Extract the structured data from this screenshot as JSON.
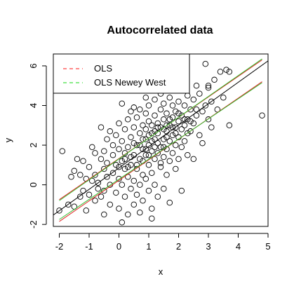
{
  "chart_data": {
    "type": "scatter",
    "title": "Autocorrelated data",
    "xlabel": "x",
    "ylabel": "y",
    "xlim": [
      -2.2,
      5.0
    ],
    "ylim": [
      -2.1,
      6.6
    ],
    "xticks": [
      "-2",
      "-1",
      "0",
      "1",
      "2",
      "3",
      "4",
      "5"
    ],
    "yticks": [
      "-2",
      "0",
      "2",
      "4",
      "6"
    ],
    "xtick_values": [
      -2,
      -1,
      0,
      1,
      2,
      3,
      4,
      5
    ],
    "ytick_values": [
      -2,
      0,
      2,
      4,
      6
    ],
    "grid": false,
    "legend_position": "top-left",
    "legend": [
      {
        "label": "OLS",
        "color": "#FF4040",
        "style": "dashed"
      },
      {
        "label": "OLS Newey West",
        "color": "#40E040",
        "style": "dashed"
      }
    ],
    "fit_line": {
      "intercept": 0.85,
      "slope": 1.08,
      "color": "#000000"
    },
    "bands": [
      {
        "name": "OLS",
        "color": "#E02020",
        "lower": [
          [
            -2,
            -1.85
          ],
          [
            4.8,
            5.2
          ]
        ],
        "upper": [
          [
            -2,
            -0.75
          ],
          [
            4.8,
            6.3
          ]
        ]
      },
      {
        "name": "OLS Newey West",
        "color": "#30C030",
        "lower": [
          [
            -2,
            -1.75
          ],
          [
            4.8,
            5.15
          ]
        ],
        "upper": [
          [
            -2,
            -0.8
          ],
          [
            4.8,
            6.35
          ]
        ]
      }
    ],
    "points": [
      [
        -2.0,
        -1.3
      ],
      [
        -1.9,
        1.7
      ],
      [
        -1.7,
        -1.0
      ],
      [
        -1.6,
        0.4
      ],
      [
        -1.5,
        -1.1
      ],
      [
        -1.5,
        0.7
      ],
      [
        -1.4,
        1.3
      ],
      [
        -1.3,
        -0.6
      ],
      [
        -1.3,
        0.5
      ],
      [
        -1.2,
        -0.3
      ],
      [
        -1.2,
        1.2
      ],
      [
        -1.1,
        0.3
      ],
      [
        -1.1,
        -1.3
      ],
      [
        -1.0,
        0.9
      ],
      [
        -1.0,
        -0.5
      ],
      [
        -0.9,
        0.2
      ],
      [
        -0.9,
        1.9
      ],
      [
        -0.8,
        -0.8
      ],
      [
        -0.8,
        1.6
      ],
      [
        -0.8,
        0.5
      ],
      [
        -0.7,
        0.1
      ],
      [
        -0.7,
        -0.2
      ],
      [
        -0.6,
        1.3
      ],
      [
        -0.6,
        2.9
      ],
      [
        -0.6,
        -0.6
      ],
      [
        -0.5,
        0.8
      ],
      [
        -0.5,
        1.7
      ],
      [
        -0.5,
        -1.5
      ],
      [
        -0.4,
        0.4
      ],
      [
        -0.4,
        2.3
      ],
      [
        -0.4,
        1.1
      ],
      [
        -0.3,
        0.0
      ],
      [
        -0.3,
        2.7
      ],
      [
        -0.3,
        -1.0
      ],
      [
        -0.2,
        1.5
      ],
      [
        -0.2,
        0.6
      ],
      [
        -0.2,
        2.0
      ],
      [
        -0.1,
        1.0
      ],
      [
        -0.1,
        -0.4
      ],
      [
        -0.1,
        2.5
      ],
      [
        0.0,
        0.3
      ],
      [
        0.0,
        1.8
      ],
      [
        0.0,
        3.1
      ],
      [
        0.0,
        -1.2
      ],
      [
        0.1,
        1.2
      ],
      [
        0.1,
        0.0
      ],
      [
        0.1,
        2.2
      ],
      [
        0.1,
        4.1
      ],
      [
        0.2,
        0.8
      ],
      [
        0.2,
        1.6
      ],
      [
        0.2,
        -0.6
      ],
      [
        0.2,
        2.8
      ],
      [
        0.3,
        1.9
      ],
      [
        0.3,
        0.4
      ],
      [
        0.3,
        3.3
      ],
      [
        0.3,
        -1.5
      ],
      [
        0.4,
        1.0
      ],
      [
        0.4,
        2.4
      ],
      [
        0.4,
        -0.2
      ],
      [
        0.4,
        3.7
      ],
      [
        0.5,
        1.5
      ],
      [
        0.5,
        0.2
      ],
      [
        0.5,
        2.9
      ],
      [
        0.5,
        -1.0
      ],
      [
        0.5,
        3.9
      ],
      [
        0.6,
        2.0
      ],
      [
        0.6,
        0.8
      ],
      [
        0.6,
        3.4
      ],
      [
        0.6,
        -0.5
      ],
      [
        0.7,
        1.3
      ],
      [
        0.7,
        2.6
      ],
      [
        0.7,
        0.0
      ],
      [
        0.7,
        3.8
      ],
      [
        0.7,
        -1.4
      ],
      [
        0.8,
        1.8
      ],
      [
        0.8,
        0.5
      ],
      [
        0.8,
        3.0
      ],
      [
        0.8,
        2.3
      ],
      [
        0.8,
        -0.8
      ],
      [
        0.9,
        1.5
      ],
      [
        0.9,
        2.8
      ],
      [
        0.9,
        0.3
      ],
      [
        0.9,
        3.6
      ],
      [
        0.9,
        4.4
      ],
      [
        1.0,
        2.0
      ],
      [
        1.0,
        1.0
      ],
      [
        1.0,
        3.2
      ],
      [
        1.0,
        -0.3
      ],
      [
        1.0,
        2.5
      ],
      [
        1.0,
        4.0
      ],
      [
        1.1,
        1.7
      ],
      [
        1.1,
        3.0
      ],
      [
        1.1,
        0.6
      ],
      [
        1.1,
        2.2
      ],
      [
        1.1,
        -1.2
      ],
      [
        1.2,
        2.7
      ],
      [
        1.2,
        1.3
      ],
      [
        1.2,
        3.5
      ],
      [
        1.2,
        0.0
      ],
      [
        1.2,
        4.3
      ],
      [
        1.3,
        2.1
      ],
      [
        1.3,
        1.6
      ],
      [
        1.3,
        3.1
      ],
      [
        1.3,
        -0.6
      ],
      [
        1.3,
        2.6
      ],
      [
        1.4,
        1.9
      ],
      [
        1.4,
        3.8
      ],
      [
        1.4,
        0.9
      ],
      [
        1.4,
        2.9
      ],
      [
        1.4,
        4.6
      ],
      [
        1.5,
        2.3
      ],
      [
        1.5,
        1.4
      ],
      [
        1.5,
        3.3
      ],
      [
        1.5,
        -0.2
      ],
      [
        1.5,
        4.1
      ],
      [
        1.6,
        2.7
      ],
      [
        1.6,
        1.8
      ],
      [
        1.6,
        3.6
      ],
      [
        1.6,
        0.5
      ],
      [
        1.7,
        2.2
      ],
      [
        1.7,
        3.0
      ],
      [
        1.7,
        1.2
      ],
      [
        1.7,
        4.4
      ],
      [
        1.7,
        -0.9
      ],
      [
        1.8,
        2.5
      ],
      [
        1.8,
        3.4
      ],
      [
        1.8,
        1.6
      ],
      [
        1.8,
        4.0
      ],
      [
        1.9,
        2.9
      ],
      [
        1.9,
        2.0
      ],
      [
        1.9,
        3.7
      ],
      [
        1.9,
        0.8
      ],
      [
        2.0,
        3.2
      ],
      [
        2.0,
        2.4
      ],
      [
        2.0,
        4.2
      ],
      [
        2.0,
        1.3
      ],
      [
        2.0,
        4.8
      ],
      [
        2.1,
        2.8
      ],
      [
        2.1,
        3.5
      ],
      [
        2.1,
        1.9
      ],
      [
        2.1,
        -0.3
      ],
      [
        2.2,
        3.0
      ],
      [
        2.2,
        4.0
      ],
      [
        2.2,
        2.2
      ],
      [
        2.3,
        3.3
      ],
      [
        2.3,
        4.5
      ],
      [
        2.3,
        1.5
      ],
      [
        2.4,
        2.7
      ],
      [
        2.4,
        3.8
      ],
      [
        2.5,
        3.1
      ],
      [
        2.5,
        4.3
      ],
      [
        2.5,
        1.3
      ],
      [
        2.6,
        3.5
      ],
      [
        2.6,
        5.0
      ],
      [
        2.7,
        2.5
      ],
      [
        2.7,
        4.6
      ],
      [
        2.8,
        3.7
      ],
      [
        2.8,
        2.1
      ],
      [
        2.9,
        4.0
      ],
      [
        2.9,
        6.1
      ],
      [
        3.0,
        3.3
      ],
      [
        3.0,
        4.9
      ],
      [
        3.1,
        2.9
      ],
      [
        3.1,
        4.2
      ],
      [
        3.2,
        5.3
      ],
      [
        3.3,
        3.8
      ],
      [
        3.4,
        5.7
      ],
      [
        3.5,
        4.4
      ],
      [
        3.6,
        5.8
      ],
      [
        3.7,
        3.0
      ],
      [
        3.7,
        5.7
      ],
      [
        3.0,
        5.0
      ],
      [
        4.8,
        3.5
      ],
      [
        0.1,
        -1.9
      ],
      [
        1.1,
        -1.7
      ],
      [
        -0.5,
        -0.3
      ],
      [
        2.3,
        2.6
      ],
      [
        1.6,
        2.4
      ],
      [
        0.8,
        1.2
      ],
      [
        1.2,
        1.9
      ],
      [
        0.4,
        1.4
      ],
      [
        1.5,
        2.8
      ],
      [
        0.6,
        1.0
      ],
      [
        1.9,
        2.6
      ],
      [
        1.0,
        1.5
      ],
      [
        2.2,
        3.3
      ],
      [
        0.3,
        0.9
      ],
      [
        1.4,
        1.1
      ],
      [
        0.9,
        2.3
      ],
      [
        1.8,
        2.9
      ],
      [
        0.7,
        2.0
      ],
      [
        1.3,
        2.9
      ],
      [
        0.5,
        2.1
      ],
      [
        1.7,
        3.3
      ],
      [
        2.4,
        3.2
      ],
      [
        1.1,
        2.6
      ],
      [
        0.2,
        1.3
      ],
      [
        1.6,
        3.0
      ],
      [
        2.0,
        3.6
      ],
      [
        0.0,
        0.9
      ],
      [
        0.9,
        1.8
      ],
      [
        1.2,
        2.3
      ],
      [
        1.5,
        1.9
      ],
      [
        2.6,
        3.8
      ]
    ]
  }
}
